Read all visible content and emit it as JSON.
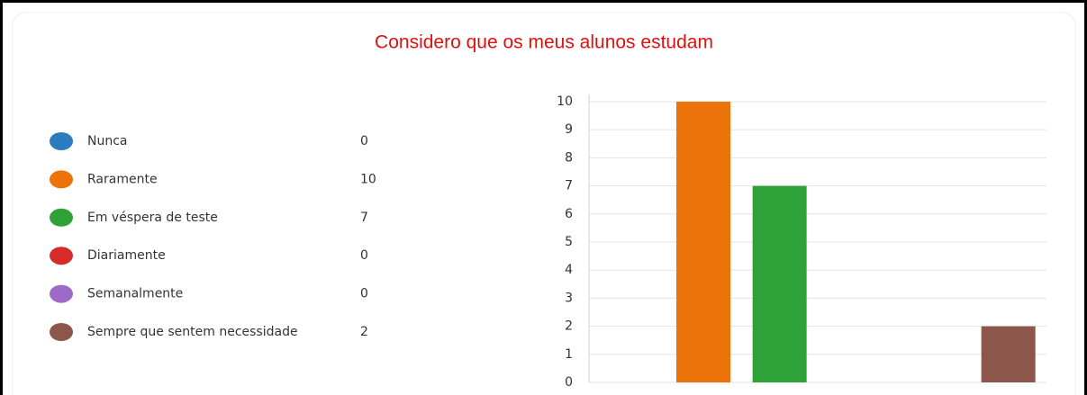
{
  "chart_data": {
    "type": "bar",
    "title": "Considero que os meus alunos estudam",
    "categories": [
      "Nunca",
      "Raramente",
      "Em véspera de teste",
      "Diariamente",
      "Semanalmente",
      "Sempre que sentem necessidade"
    ],
    "values": [
      0,
      10,
      7,
      0,
      0,
      2
    ],
    "colors": [
      "#2b7bbf",
      "#eb730a",
      "#2ea238",
      "#d62b2b",
      "#9d6bc7",
      "#8c564b"
    ],
    "ylim": [
      0,
      10
    ],
    "yticks": [
      0,
      1,
      2,
      3,
      4,
      5,
      6,
      7,
      8,
      9,
      10
    ],
    "grid": true
  }
}
